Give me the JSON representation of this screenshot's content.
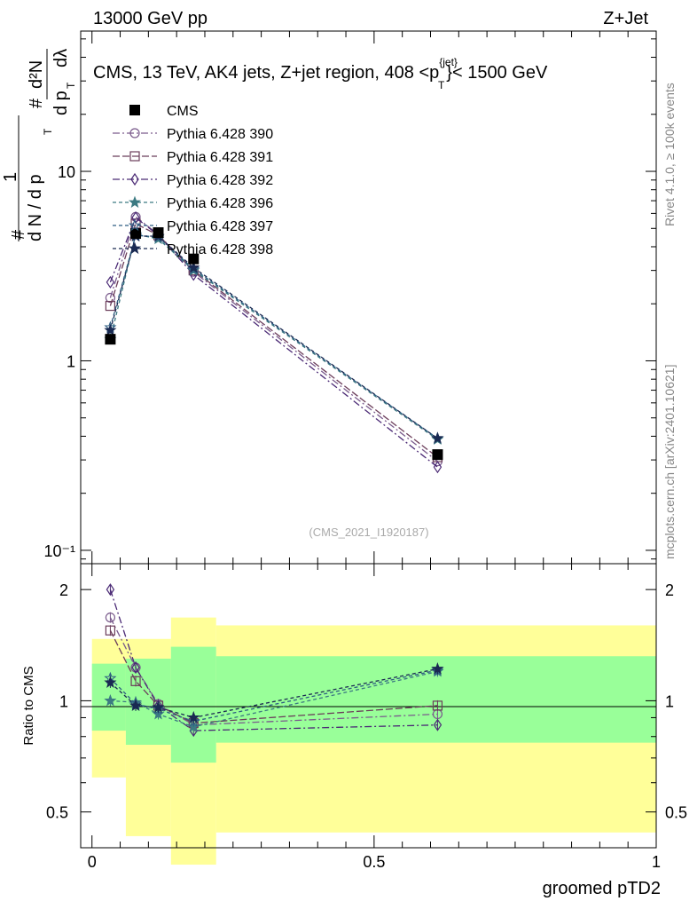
{
  "header": {
    "energy_label": "13000 GeV pp",
    "process_label": "Z+Jet",
    "side_label_top": "Rivet 4.1.0, ≥ 100k events",
    "side_label_bottom": "mcplots.cern.ch [arXiv:2401.10621]",
    "watermark": "(CMS_2021_I1920187)"
  },
  "chart_data": [
    {
      "type": "line",
      "panel": "main",
      "title_parts": {
        "prefix": "CMS, 13 TeV, AK4 jets, Z+jet region, 408 <p",
        "sup": "{jet}",
        "sub": "T",
        "suffix": "}< 1500 GeV"
      },
      "ylabel": {
        "hash": "#",
        "one": "1",
        "d2n": "d²N",
        "dn": "d N / d p",
        "dpt": "d p",
        "dlambda": "dλ",
        "t": "T"
      },
      "yscale": "log",
      "ylim": [
        0.085,
        55
      ],
      "xlim": [
        -0.02,
        1.0
      ],
      "y_ticks": [
        {
          "value": 0.1,
          "label": "10⁻¹"
        },
        {
          "value": 1,
          "label": "1"
        },
        {
          "value": 10,
          "label": "10"
        }
      ],
      "x": [
        0.0325,
        0.0775,
        0.1175,
        0.18,
        0.6125
      ],
      "reference": {
        "name": "CMS",
        "color": "#000000",
        "values": [
          1.3,
          4.7,
          4.75,
          3.45,
          0.32
        ]
      },
      "series": [
        {
          "name": "Pythia 6.428 390",
          "marker": "circle",
          "color": "#7a5b8c",
          "dash": "8,3,2,3",
          "values": [
            2.15,
            5.75,
            4.65,
            2.95,
            0.295
          ]
        },
        {
          "name": "Pythia 6.428 391",
          "marker": "square",
          "color": "#6b3d5a",
          "dash": "8,3",
          "values": [
            1.95,
            5.3,
            4.6,
            3.0,
            0.31
          ]
        },
        {
          "name": "Pythia 6.428 392",
          "marker": "diamond",
          "color": "#4b2a75",
          "dash": "8,3,2,3",
          "values": [
            2.6,
            5.7,
            4.6,
            2.85,
            0.275
          ]
        },
        {
          "name": "Pythia 6.428 396",
          "marker": "star",
          "color": "#3c7a82",
          "dash": "4,3",
          "values": [
            1.3,
            4.65,
            4.4,
            3.0,
            0.385
          ]
        },
        {
          "name": "Pythia 6.428 397",
          "marker": "star-open",
          "color": "#2d5d82",
          "dash": "4,3",
          "values": [
            1.5,
            4.6,
            4.5,
            3.05,
            0.39
          ]
        },
        {
          "name": "Pythia 6.428 398",
          "marker": "star",
          "color": "#1a2a52",
          "dash": "4,3",
          "values": [
            1.45,
            4.55,
            4.55,
            3.1,
            0.39
          ]
        }
      ]
    },
    {
      "type": "line",
      "panel": "ratio",
      "ylabel": "Ratio to CMS",
      "xlabel": "groomed pTD2",
      "yscale": "log",
      "ylim": [
        0.4,
        2.35
      ],
      "xlim": [
        -0.02,
        1.0
      ],
      "y_ticks": [
        {
          "value": 0.5,
          "label": "0.5"
        },
        {
          "value": 1,
          "label": "1"
        },
        {
          "value": 2,
          "label": "2"
        }
      ],
      "x_ticks": [
        {
          "value": 0,
          "label": "0"
        },
        {
          "value": 0.5,
          "label": "0.5"
        },
        {
          "value": 1,
          "label": "1"
        }
      ],
      "bins": [
        {
          "lo": 0.0,
          "hi": 0.06,
          "green": [
            0.83,
            1.26
          ],
          "yellow": [
            0.62,
            1.47
          ]
        },
        {
          "lo": 0.06,
          "hi": 0.14,
          "green": [
            0.76,
            1.3
          ],
          "yellow": [
            0.43,
            1.47
          ]
        },
        {
          "lo": 0.14,
          "hi": 0.22,
          "green": [
            0.68,
            1.4
          ],
          "yellow": [
            0.36,
            1.68
          ]
        },
        {
          "lo": 0.22,
          "hi": 1.0,
          "green": [
            0.77,
            1.32
          ],
          "yellow": [
            0.44,
            1.6
          ]
        }
      ],
      "x": [
        0.0325,
        0.0775,
        0.1175,
        0.18,
        0.6125
      ],
      "series": [
        {
          "name": "Pythia 6.428 390",
          "values": [
            1.68,
            1.23,
            0.98,
            0.86,
            0.92
          ]
        },
        {
          "name": "Pythia 6.428 391",
          "values": [
            1.55,
            1.13,
            0.97,
            0.87,
            0.97
          ]
        },
        {
          "name": "Pythia 6.428 392",
          "values": [
            2.0,
            1.23,
            0.97,
            0.83,
            0.86
          ]
        },
        {
          "name": "Pythia 6.428 396",
          "values": [
            1.0,
            0.99,
            0.92,
            0.85,
            1.2
          ]
        },
        {
          "name": "Pythia 6.428 397",
          "values": [
            1.15,
            0.98,
            0.95,
            0.88,
            1.21
          ]
        },
        {
          "name": "Pythia 6.428 398",
          "values": [
            1.12,
            0.97,
            0.96,
            0.9,
            1.22
          ]
        }
      ]
    }
  ]
}
